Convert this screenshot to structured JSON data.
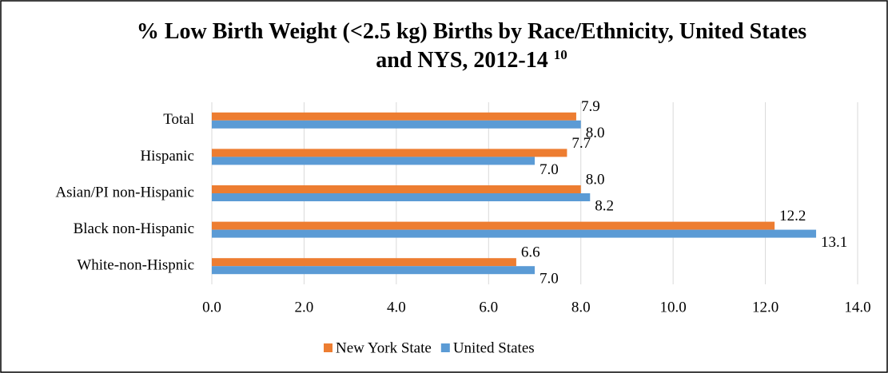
{
  "chart_data": {
    "type": "barh",
    "title": "% Low Birth Weight (<2.5 kg) Births by Race/Ethnicity, United States and NYS, 2012-14",
    "title_superscript": "10",
    "categories": [
      "Total",
      "Hispanic",
      "Asian/PI non-Hispanic",
      "Black non-Hispanic",
      "White-non-Hispnic"
    ],
    "series": [
      {
        "name": "New York State",
        "color": "#ed7d31",
        "values": [
          7.9,
          7.7,
          8.0,
          12.2,
          6.6
        ],
        "value_labels": [
          "7.9",
          "7.7",
          "8.0",
          "12.2",
          "6.6"
        ]
      },
      {
        "name": "United States",
        "color": "#5b9bd5",
        "values": [
          8.0,
          7.0,
          8.2,
          13.1,
          7.0
        ],
        "value_labels": [
          "8.0",
          "7.0",
          "8.2",
          "13.1",
          "7.0"
        ]
      }
    ],
    "xlim": [
      0,
      14
    ],
    "xticks": [
      {
        "value": 0,
        "label": "0.0"
      },
      {
        "value": 2,
        "label": "2.0"
      },
      {
        "value": 4,
        "label": "4.0"
      },
      {
        "value": 6,
        "label": "6.0"
      },
      {
        "value": 8,
        "label": "8.0"
      },
      {
        "value": 10,
        "label": "10.0"
      },
      {
        "value": 12,
        "label": "12.0"
      },
      {
        "value": 14,
        "label": "14.0"
      }
    ],
    "grid": true,
    "legend": "bottom"
  }
}
